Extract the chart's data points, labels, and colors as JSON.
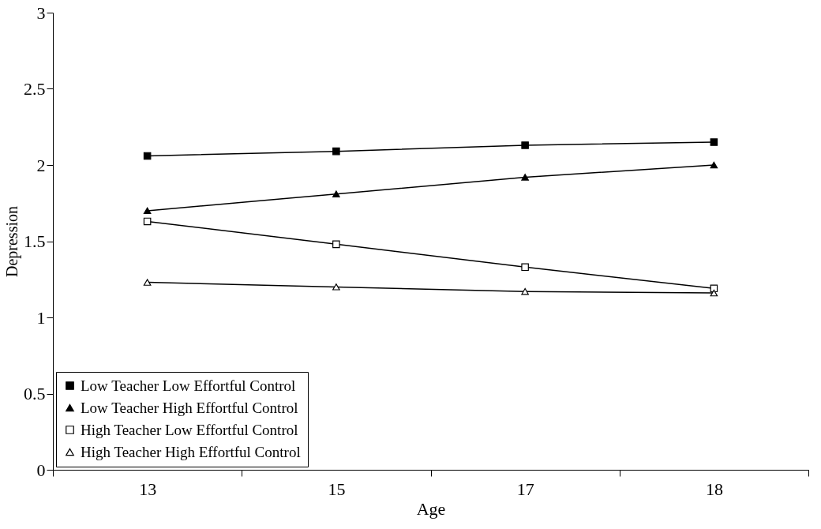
{
  "chart_data": {
    "type": "line",
    "xlabel": "Age",
    "ylabel": "Depression",
    "categories": [
      "13",
      "15",
      "17",
      "18"
    ],
    "ylim": [
      0,
      3
    ],
    "yticks": [
      0,
      0.5,
      1,
      1.5,
      2,
      2.5,
      3
    ],
    "grid": false,
    "legend": "bottom left",
    "line_style": "solid",
    "series": [
      {
        "name": "Low Teacher Low Effortful Control",
        "color": "#000000",
        "marker": "square",
        "values": [
          2.06,
          2.09,
          2.13,
          2.15
        ]
      },
      {
        "name": "Low Teacher High Effortful Control",
        "color": "#000000",
        "marker": "triangle",
        "values": [
          1.7,
          1.81,
          1.92,
          2.0
        ]
      },
      {
        "name": "High Teacher Low Effortful Control",
        "color": "#000000",
        "marker": "square-open",
        "values": [
          1.63,
          1.48,
          1.33,
          1.19
        ]
      },
      {
        "name": "High Teacher High Effortful Control",
        "color": "#000000",
        "marker": "triangle-open",
        "values": [
          1.23,
          1.2,
          1.17,
          1.16
        ]
      }
    ]
  }
}
